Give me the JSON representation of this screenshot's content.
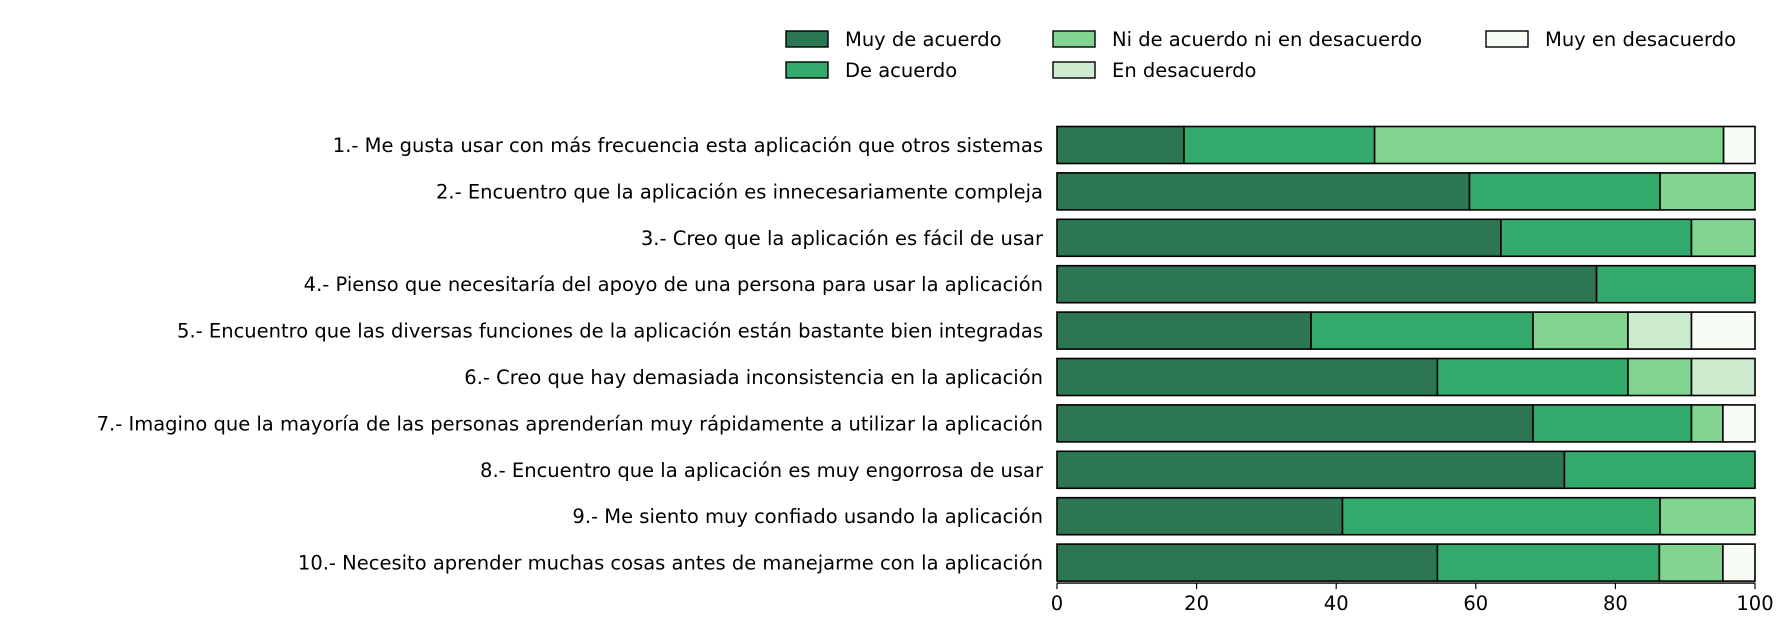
{
  "chart_data": {
    "type": "bar",
    "orientation": "horizontal",
    "stacked": true,
    "title": "",
    "xlabel": "",
    "ylabel": "",
    "xlim": [
      0,
      100
    ],
    "xticks": [
      0,
      20,
      40,
      60,
      80,
      100
    ],
    "grid": false,
    "legend_position": "top-right",
    "categories": [
      "1.- Me gusta usar con más frecuencia esta aplicación que otros sistemas",
      "2.- Encuentro que la aplicación es innecesariamente compleja",
      "3.- Creo que la aplicación es fácil de usar",
      "4.- Pienso que necesitaría del apoyo de una persona para usar la aplicación",
      "5.- Encuentro que las diversas funciones de la aplicación están bastante bien integradas",
      "6.- Creo que hay demasiada inconsistencia en la aplicación",
      "7.- Imagino que la mayoría de las personas aprenderían muy rápidamente a utilizar la aplicación",
      "8.- Encuentro que la aplicación es muy engorrosa de usar",
      "9.- Me siento muy confiado usando la aplicación",
      "10.- Necesito aprender muchas cosas antes de manejarme con la aplicación"
    ],
    "series": [
      {
        "name": "Muy de acuerdo",
        "color": "#2c7653",
        "values": [
          18.2,
          59.1,
          63.6,
          77.3,
          36.4,
          54.5,
          68.2,
          72.7,
          40.9,
          54.5
        ]
      },
      {
        "name": "De acuerdo",
        "color": "#34a96c",
        "values": [
          27.3,
          27.3,
          27.3,
          22.7,
          31.8,
          27.3,
          22.7,
          27.3,
          45.5,
          31.8
        ]
      },
      {
        "name": "Ni de acuerdo ni en desacuerdo",
        "color": "#82d591",
        "values": [
          50.0,
          13.6,
          9.1,
          0,
          13.6,
          9.1,
          4.5,
          0,
          13.6,
          9.1
        ]
      },
      {
        "name": "En desacuerdo",
        "color": "#cdeccf",
        "values": [
          0,
          0,
          0,
          0,
          9.1,
          9.1,
          0,
          0,
          0,
          0
        ]
      },
      {
        "name": "Muy en desacuerdo",
        "color": "#f7fcf5",
        "values": [
          4.5,
          0,
          0,
          0,
          9.1,
          0,
          4.6,
          0,
          0,
          4.6
        ]
      }
    ]
  }
}
